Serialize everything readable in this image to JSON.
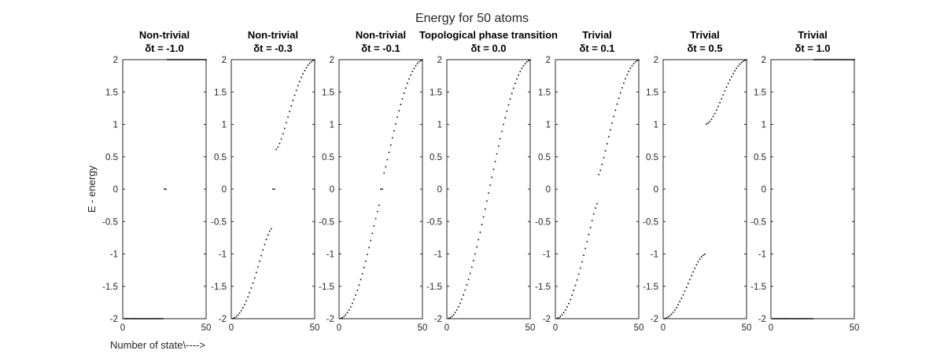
{
  "figure": {
    "title": "Energy for 50 atoms",
    "ylabel": "E - energy",
    "xlabel": "Number of state\\---->"
  },
  "chart_data": [
    {
      "type": "scatter",
      "title": [
        "Non-trivial",
        "δt = -1.0"
      ],
      "xlim": [
        0,
        50
      ],
      "ylim": [
        -2,
        2
      ],
      "xticks": [
        "0",
        "50"
      ],
      "yticks": [
        "-2",
        "-1.5",
        "-1",
        "-0.5",
        "0",
        "0.5",
        "1",
        "1.5",
        "2"
      ],
      "params": {
        "dt": -1.0
      }
    },
    {
      "type": "scatter",
      "title": [
        "Non-trivial",
        "δt = -0.3"
      ],
      "xlim": [
        0,
        50
      ],
      "ylim": [
        -2,
        2
      ],
      "xticks": [
        "0",
        "50"
      ],
      "yticks": [
        "-2",
        "-1.5",
        "-1",
        "-0.5",
        "0",
        "0.5",
        "1",
        "1.5",
        "2"
      ],
      "params": {
        "dt": -0.3
      }
    },
    {
      "type": "scatter",
      "title": [
        "Non-trivial",
        "δt = -0.1"
      ],
      "xlim": [
        0,
        50
      ],
      "ylim": [
        -2,
        2
      ],
      "xticks": [
        "0",
        "50"
      ],
      "yticks": [
        "-2",
        "-1.5",
        "-1",
        "-0.5",
        "0",
        "0.5",
        "1",
        "1.5",
        "2"
      ],
      "params": {
        "dt": -0.1
      }
    },
    {
      "type": "scatter",
      "title": [
        "Topological phase transition",
        "δt = 0.0"
      ],
      "xlim": [
        0,
        50
      ],
      "ylim": [
        -2,
        2
      ],
      "xticks": [
        "0",
        "50"
      ],
      "yticks": [
        "-2",
        "-1.5",
        "-1",
        "-0.5",
        "0",
        "0.5",
        "1",
        "1.5",
        "2"
      ],
      "params": {
        "dt": 0.0
      }
    },
    {
      "type": "scatter",
      "title": [
        "Trivial",
        "δt = 0.1"
      ],
      "xlim": [
        0,
        50
      ],
      "ylim": [
        -2,
        2
      ],
      "xticks": [
        "0",
        "50"
      ],
      "yticks": [
        "-2",
        "-1.5",
        "-1",
        "-0.5",
        "0",
        "0.5",
        "1",
        "1.5",
        "2"
      ],
      "params": {
        "dt": 0.1
      }
    },
    {
      "type": "scatter",
      "title": [
        "Trivial",
        "δt = 0.5"
      ],
      "xlim": [
        0,
        50
      ],
      "ylim": [
        -2,
        2
      ],
      "xticks": [
        "0",
        "50"
      ],
      "yticks": [
        "-2",
        "-1.5",
        "-1",
        "-0.5",
        "0",
        "0.5",
        "1",
        "1.5",
        "2"
      ],
      "params": {
        "dt": 0.5
      }
    },
    {
      "type": "scatter",
      "title": [
        "Trivial",
        "δt = 1.0"
      ],
      "xlim": [
        0,
        50
      ],
      "ylim": [
        -2,
        2
      ],
      "xticks": [
        "0",
        "50"
      ],
      "yticks": [
        "-2",
        "-1.5",
        "-1",
        "-0.5",
        "0",
        "0.5",
        "1",
        "1.5",
        "2"
      ],
      "params": {
        "dt": 1.0
      }
    }
  ]
}
